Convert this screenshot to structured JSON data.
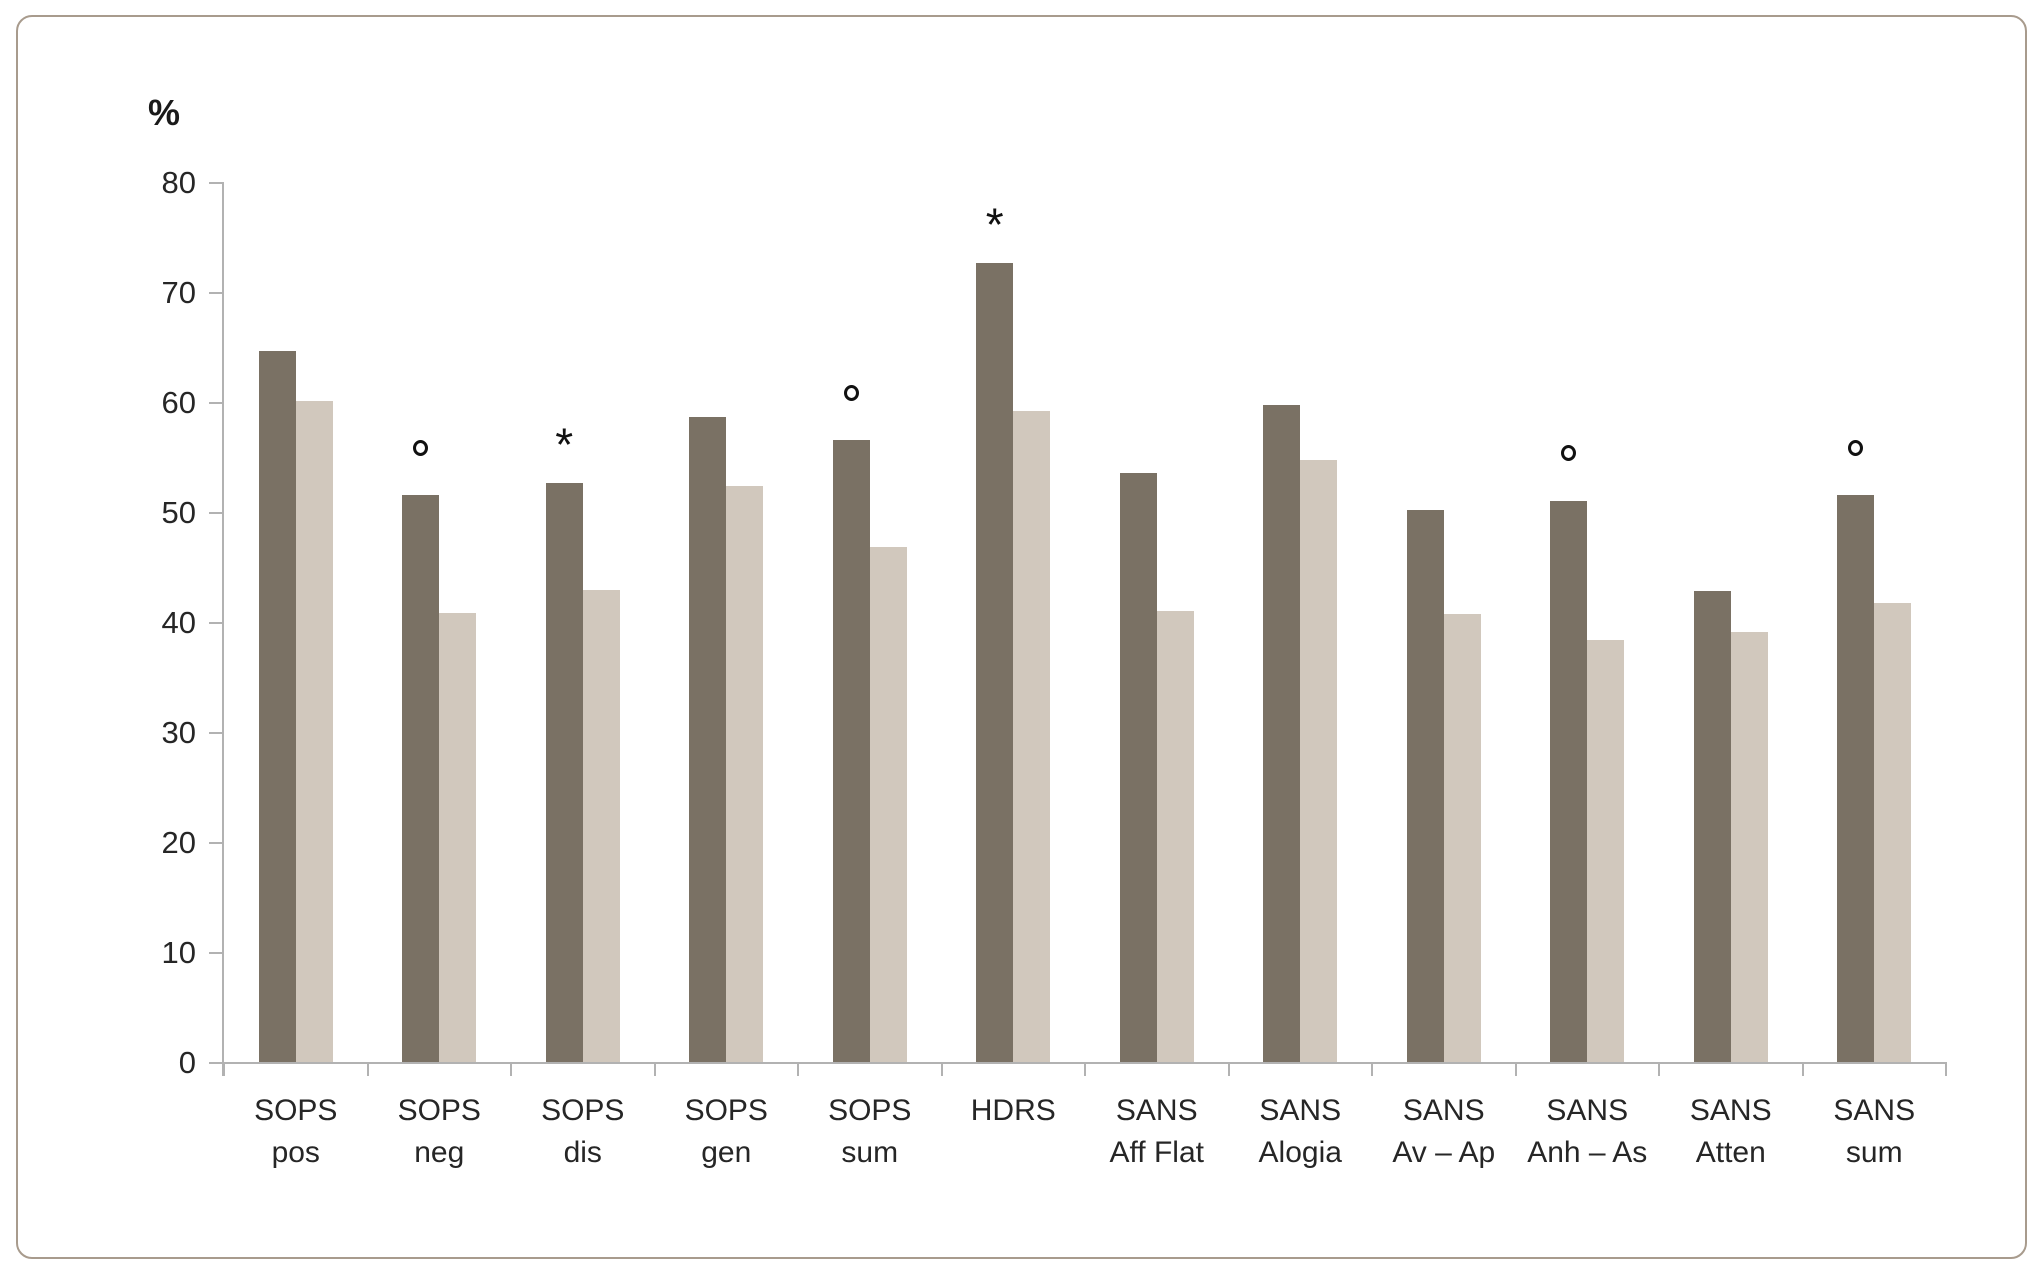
{
  "chart_data": {
    "type": "bar",
    "title": "",
    "ylabel": "%",
    "xlabel": "",
    "ylim": [
      0,
      80
    ],
    "y_ticks": [
      80,
      70,
      60,
      50,
      40,
      30,
      20,
      10,
      0
    ],
    "grid": false,
    "legend": "none",
    "categories": [
      "SOPS pos",
      "SOPS neg",
      "SOPS dis",
      "SOPS gen",
      "SOPS sum",
      "HDRS",
      "SANS Aff Flat",
      "SANS Alogia",
      "SANS Av – Ap",
      "SANS Anh – As",
      "SANS Atten",
      "SANS sum"
    ],
    "category_label_lines": [
      [
        "SOPS",
        "pos"
      ],
      [
        "SOPS",
        "neg"
      ],
      [
        "SOPS",
        "dis"
      ],
      [
        "SOPS",
        "gen"
      ],
      [
        "SOPS",
        "sum"
      ],
      [
        "HDRS"
      ],
      [
        "SANS",
        "Aff Flat"
      ],
      [
        "SANS",
        "Alogia"
      ],
      [
        "SANS",
        "Av – Ap"
      ],
      [
        "SANS",
        "Anh – As"
      ],
      [
        "SANS",
        "Atten"
      ],
      [
        "SANS",
        "sum"
      ]
    ],
    "series": [
      {
        "key": "dark",
        "color": "#7a7164",
        "values": [
          64.6,
          51.5,
          52.6,
          58.6,
          56.5,
          72.6,
          53.5,
          59.7,
          50.2,
          51.0,
          42.8,
          51.5
        ]
      },
      {
        "key": "light",
        "color": "#d1c8bd",
        "values": [
          60.1,
          40.8,
          42.9,
          52.4,
          46.8,
          59.2,
          41.0,
          54.7,
          40.7,
          38.4,
          39.1,
          41.7
        ]
      }
    ],
    "significance_markers": [
      {
        "category": "SOPS neg",
        "symbol": "°"
      },
      {
        "category": "SOPS dis",
        "symbol": "*"
      },
      {
        "category": "SOPS sum",
        "symbol": "°"
      },
      {
        "category": "HDRS",
        "symbol": "*"
      },
      {
        "category": "SANS Anh – As",
        "symbol": "°"
      },
      {
        "category": "SANS sum",
        "symbol": "°"
      }
    ],
    "colors": {
      "axis": "#b2b2b2",
      "text": "#262626",
      "marker": "#111111",
      "panel_border": "#a89b8d",
      "background": "#ffffff"
    }
  }
}
